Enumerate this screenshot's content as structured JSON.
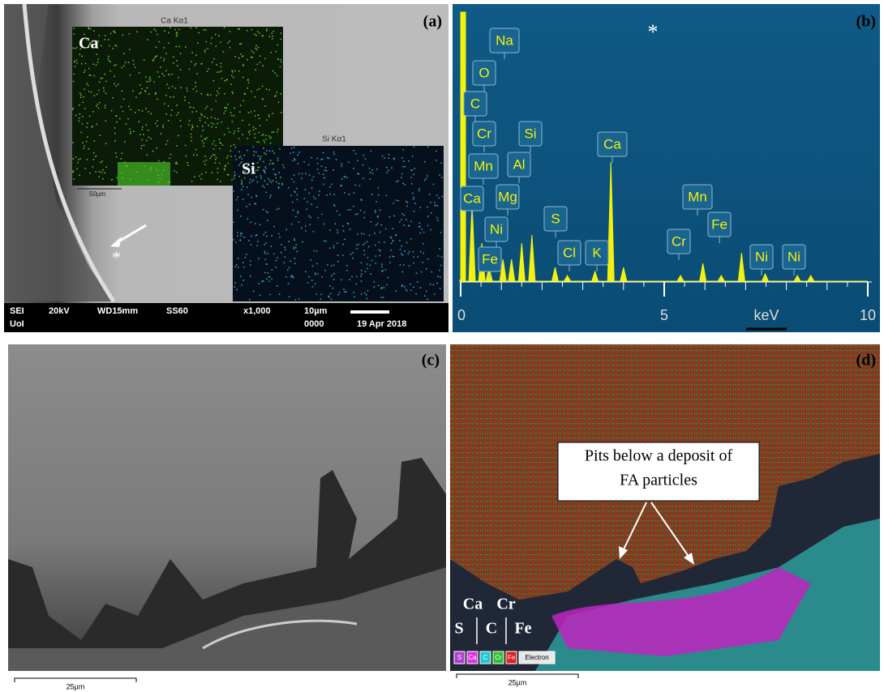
{
  "panel_a": {
    "label": "(a)",
    "ca_map_title": "Ca Kα1",
    "ca_label": "Ca",
    "si_map_title": "Si Kα1",
    "si_label": "Si",
    "inset_scale": "50µm",
    "marker": "*",
    "info_bar": [
      "SEI",
      "20kV",
      "WD15mm",
      "SS60",
      "x1,000",
      "10µm",
      "UoI",
      "0000",
      "19 Apr 2018"
    ]
  },
  "panel_b": {
    "label": "(b)",
    "marker": "*",
    "x_axis_label": "keV",
    "x_ticks": [
      0,
      5,
      10
    ],
    "peak_labels": [
      "Na",
      "O",
      "C",
      "Cr",
      "Mn",
      "Ca",
      "Ni",
      "Fe",
      "Si",
      "Al",
      "Mg",
      "S",
      "Cl",
      "K",
      "Ca",
      "Mn",
      "Cr",
      "Fe",
      "Ni",
      "Ni"
    ]
  },
  "panel_c": {
    "label": "(c)",
    "scale": "25µm"
  },
  "panel_d": {
    "label": "(d)",
    "annotation": [
      "Pits below a deposit of",
      "FA particles"
    ],
    "element_labels": [
      "Ca",
      "Cr",
      "S",
      "C",
      "Fe"
    ],
    "legend": [
      "S",
      "Ca",
      "C",
      "Cr",
      "Fe",
      "Electron"
    ],
    "scale": "25µm"
  }
}
